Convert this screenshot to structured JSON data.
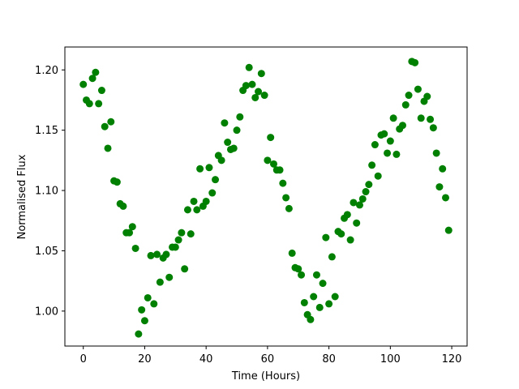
{
  "chart_data": {
    "type": "scatter",
    "title": "",
    "xlabel": "Time (Hours)",
    "ylabel": "Normalised Flux",
    "xlim": [
      -6,
      125
    ],
    "ylim": [
      0.971,
      1.219
    ],
    "x_ticks": [
      0,
      20,
      40,
      60,
      80,
      100,
      120
    ],
    "y_ticks": [
      1.0,
      1.05,
      1.1,
      1.15,
      1.2
    ],
    "x_tick_labels": [
      "0",
      "20",
      "40",
      "60",
      "80",
      "100",
      "120"
    ],
    "y_tick_labels": [
      "1.00",
      "1.05",
      "1.10",
      "1.15",
      "1.20"
    ],
    "grid": false,
    "marker_color": "#008000",
    "series": [
      {
        "x": [
          0,
          1,
          2,
          3,
          4,
          5,
          6,
          7,
          8,
          9,
          10,
          11,
          12,
          13,
          14,
          15,
          16,
          17,
          18,
          19,
          20,
          21,
          22,
          23,
          24,
          25,
          26,
          27,
          28,
          29,
          30,
          31,
          32,
          33,
          34,
          35,
          36,
          37,
          38,
          39,
          40,
          41,
          42,
          43,
          44,
          45,
          46,
          47,
          48,
          49,
          50,
          51,
          52,
          53,
          54,
          55,
          56,
          57,
          58,
          59,
          60,
          61,
          62,
          63,
          64,
          65,
          66,
          67,
          68,
          69,
          70,
          71,
          72,
          73,
          74,
          75,
          76,
          77,
          78,
          79,
          80,
          81,
          82,
          83,
          84,
          85,
          86,
          87,
          88,
          89,
          90,
          91,
          92,
          93,
          94,
          95,
          96,
          97,
          98,
          99,
          100,
          101,
          102,
          103,
          104,
          105,
          106,
          107,
          108,
          109,
          110,
          111,
          112,
          113,
          114,
          115,
          116,
          117,
          118,
          119
        ],
        "y": [
          1.188,
          1.175,
          1.172,
          1.193,
          1.198,
          1.172,
          1.183,
          1.153,
          1.135,
          1.157,
          1.108,
          1.107,
          1.089,
          1.087,
          1.065,
          1.065,
          1.07,
          1.052,
          0.981,
          1.001,
          0.992,
          1.011,
          1.046,
          1.006,
          1.047,
          1.024,
          1.044,
          1.047,
          1.028,
          1.053,
          1.053,
          1.059,
          1.065,
          1.035,
          1.084,
          1.064,
          1.091,
          1.084,
          1.118,
          1.087,
          1.091,
          1.119,
          1.098,
          1.109,
          1.129,
          1.125,
          1.156,
          1.14,
          1.134,
          1.135,
          1.15,
          1.161,
          1.183,
          1.187,
          1.202,
          1.188,
          1.177,
          1.182,
          1.197,
          1.179,
          1.125,
          1.144,
          1.122,
          1.117,
          1.117,
          1.106,
          1.094,
          1.085,
          1.048,
          1.036,
          1.035,
          1.03,
          1.007,
          0.997,
          0.993,
          1.012,
          1.03,
          1.003,
          1.023,
          1.061,
          1.006,
          1.045,
          1.012,
          1.066,
          1.064,
          1.077,
          1.08,
          1.059,
          1.09,
          1.073,
          1.088,
          1.093,
          1.099,
          1.105,
          1.121,
          1.138,
          1.112,
          1.146,
          1.147,
          1.131,
          1.141,
          1.16,
          1.13,
          1.151,
          1.154,
          1.171,
          1.179,
          1.207,
          1.206,
          1.184,
          1.16,
          1.174,
          1.178,
          1.159,
          1.152,
          1.131,
          1.103,
          1.118,
          1.094,
          1.067
        ]
      }
    ]
  }
}
